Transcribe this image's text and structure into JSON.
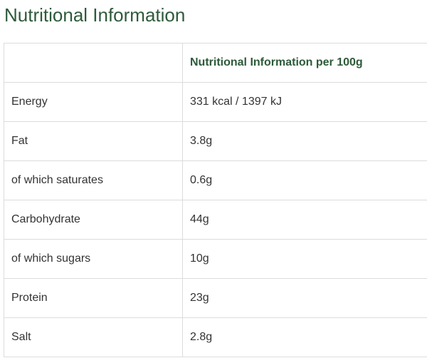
{
  "header": {
    "title": "Nutritional Information"
  },
  "table": {
    "header": [
      "",
      "Nutritional Information per 100g"
    ],
    "rows": [
      [
        "Energy",
        "331 kcal / 1397 kJ"
      ],
      [
        "Fat",
        "3.8g"
      ],
      [
        "of which saturates",
        "0.6g"
      ],
      [
        "Carbohydrate",
        "44g"
      ],
      [
        "of which sugars",
        "10g"
      ],
      [
        "Protein",
        "23g"
      ],
      [
        "Salt",
        "2.8g"
      ]
    ]
  }
}
